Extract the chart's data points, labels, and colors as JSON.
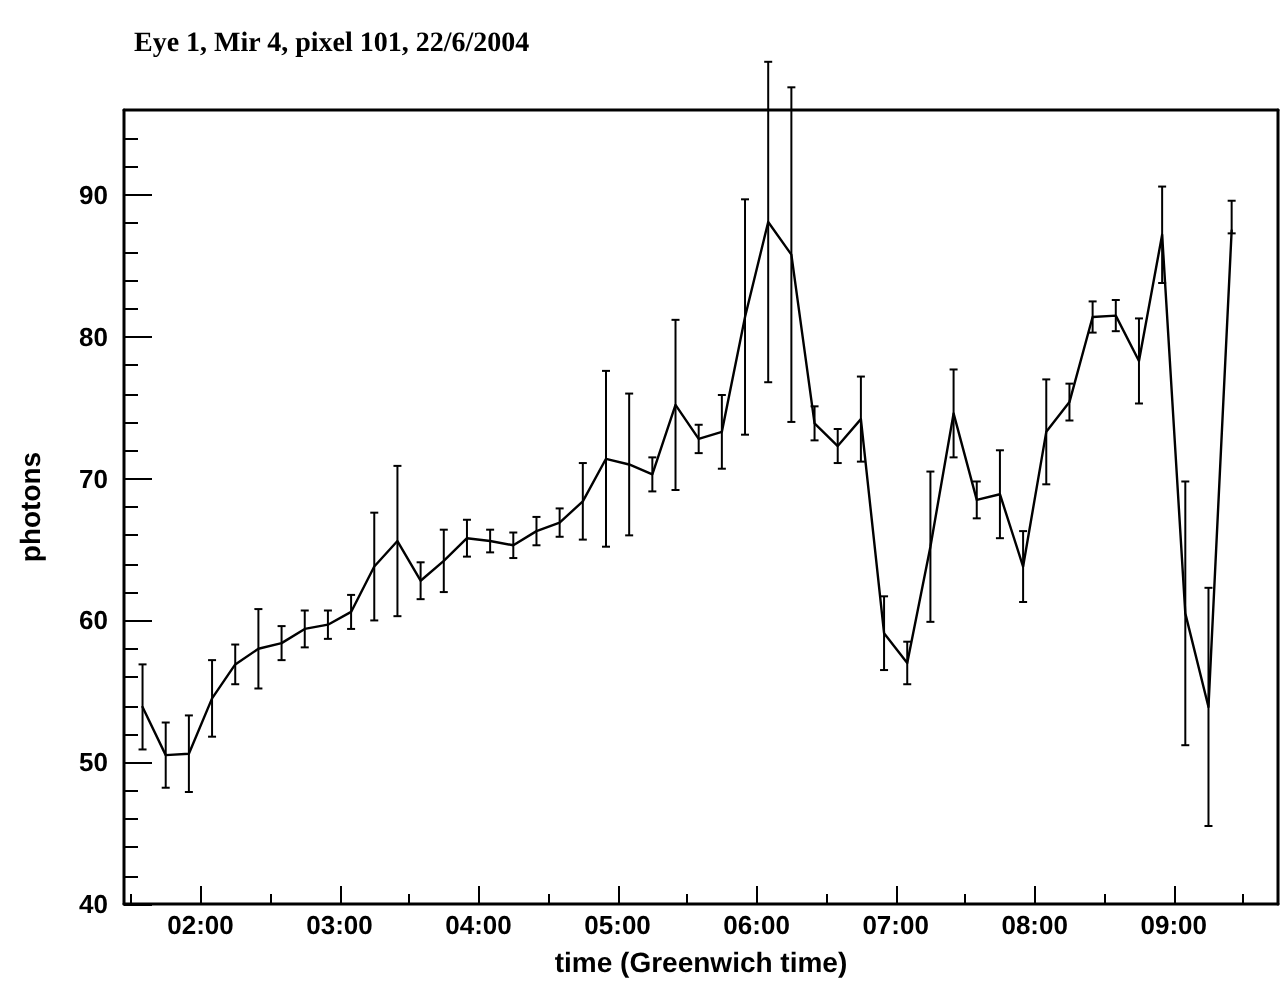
{
  "chart_data": {
    "type": "line",
    "title": "Eye 1, Mir 4, pixel 101, 22/6/2004",
    "xlabel": "time (Greenwich time)",
    "ylabel": "photons",
    "x": [
      "2004-06-22T01:35",
      "2004-06-22T01:45",
      "2004-06-22T01:55",
      "2004-06-22T02:05",
      "2004-06-22T02:15",
      "2004-06-22T02:25",
      "2004-06-22T02:35",
      "2004-06-22T02:45",
      "2004-06-22T02:55",
      "2004-06-22T03:05",
      "2004-06-22T03:15",
      "2004-06-22T03:25",
      "2004-06-22T03:35",
      "2004-06-22T03:45",
      "2004-06-22T03:55",
      "2004-06-22T04:05",
      "2004-06-22T04:15",
      "2004-06-22T04:25",
      "2004-06-22T04:35",
      "2004-06-22T04:45",
      "2004-06-22T04:55",
      "2004-06-22T05:05",
      "2004-06-22T05:15",
      "2004-06-22T05:25",
      "2004-06-22T05:35",
      "2004-06-22T05:45",
      "2004-06-22T05:55",
      "2004-06-22T06:05",
      "2004-06-22T06:15",
      "2004-06-22T06:25",
      "2004-06-22T06:35",
      "2004-06-22T06:45",
      "2004-06-22T06:55",
      "2004-06-22T07:05",
      "2004-06-22T07:15",
      "2004-06-22T07:25",
      "2004-06-22T07:35",
      "2004-06-22T07:45",
      "2004-06-22T07:55",
      "2004-06-22T08:05",
      "2004-06-22T08:15",
      "2004-06-22T08:25",
      "2004-06-22T08:35",
      "2004-06-22T08:45",
      "2004-06-22T08:55",
      "2004-06-22T09:05",
      "2004-06-22T09:15",
      "2004-06-22T09:25"
    ],
    "series": [
      {
        "color": "#000000",
        "values": [
          53.9,
          50.5,
          50.6,
          54.5,
          56.9,
          58.0,
          58.4,
          59.4,
          59.7,
          60.6,
          63.8,
          65.6,
          62.8,
          64.2,
          65.8,
          65.6,
          65.3,
          66.3,
          66.9,
          68.4,
          71.4,
          71.0,
          70.3,
          75.2,
          72.8,
          73.3,
          81.4,
          88.1,
          85.8,
          73.9,
          72.3,
          74.2,
          59.1,
          57.0,
          65.2,
          74.6,
          68.5,
          68.9,
          63.8,
          73.3,
          75.4,
          81.4,
          81.5,
          78.3,
          87.2,
          60.5,
          53.9,
          87.5
        ],
        "errors": [
          3.0,
          2.3,
          2.7,
          2.7,
          1.4,
          2.8,
          1.2,
          1.3,
          1.0,
          1.2,
          3.8,
          5.3,
          1.3,
          2.2,
          1.3,
          0.8,
          0.9,
          1.0,
          1.0,
          2.7,
          6.2,
          5.0,
          1.2,
          6.0,
          1.0,
          2.6,
          8.3,
          11.3,
          11.8,
          1.2,
          1.2,
          3.0,
          2.6,
          1.5,
          5.3,
          3.1,
          1.3,
          3.1,
          2.5,
          3.7,
          1.3,
          1.1,
          1.1,
          3.0,
          3.4,
          9.3,
          8.4,
          [
            87.3,
            89.6
          ]
        ]
      }
    ],
    "xlim": [
      "2004-06-22T01:27",
      "2004-06-22T09:45"
    ],
    "xticks": [
      {
        "value": "2004-06-22T02:00",
        "label": "02:00"
      },
      {
        "value": "2004-06-22T03:00",
        "label": "03:00"
      },
      {
        "value": "2004-06-22T04:00",
        "label": "04:00"
      },
      {
        "value": "2004-06-22T05:00",
        "label": "05:00"
      },
      {
        "value": "2004-06-22T06:00",
        "label": "06:00"
      },
      {
        "value": "2004-06-22T07:00",
        "label": "07:00"
      },
      {
        "value": "2004-06-22T08:00",
        "label": "08:00"
      },
      {
        "value": "2004-06-22T09:00",
        "label": "09:00"
      }
    ],
    "ylim": [
      40,
      96
    ],
    "yticks": [
      40,
      50,
      60,
      70,
      80,
      90
    ],
    "grid": false,
    "marker": "none",
    "line_style": "solid"
  }
}
